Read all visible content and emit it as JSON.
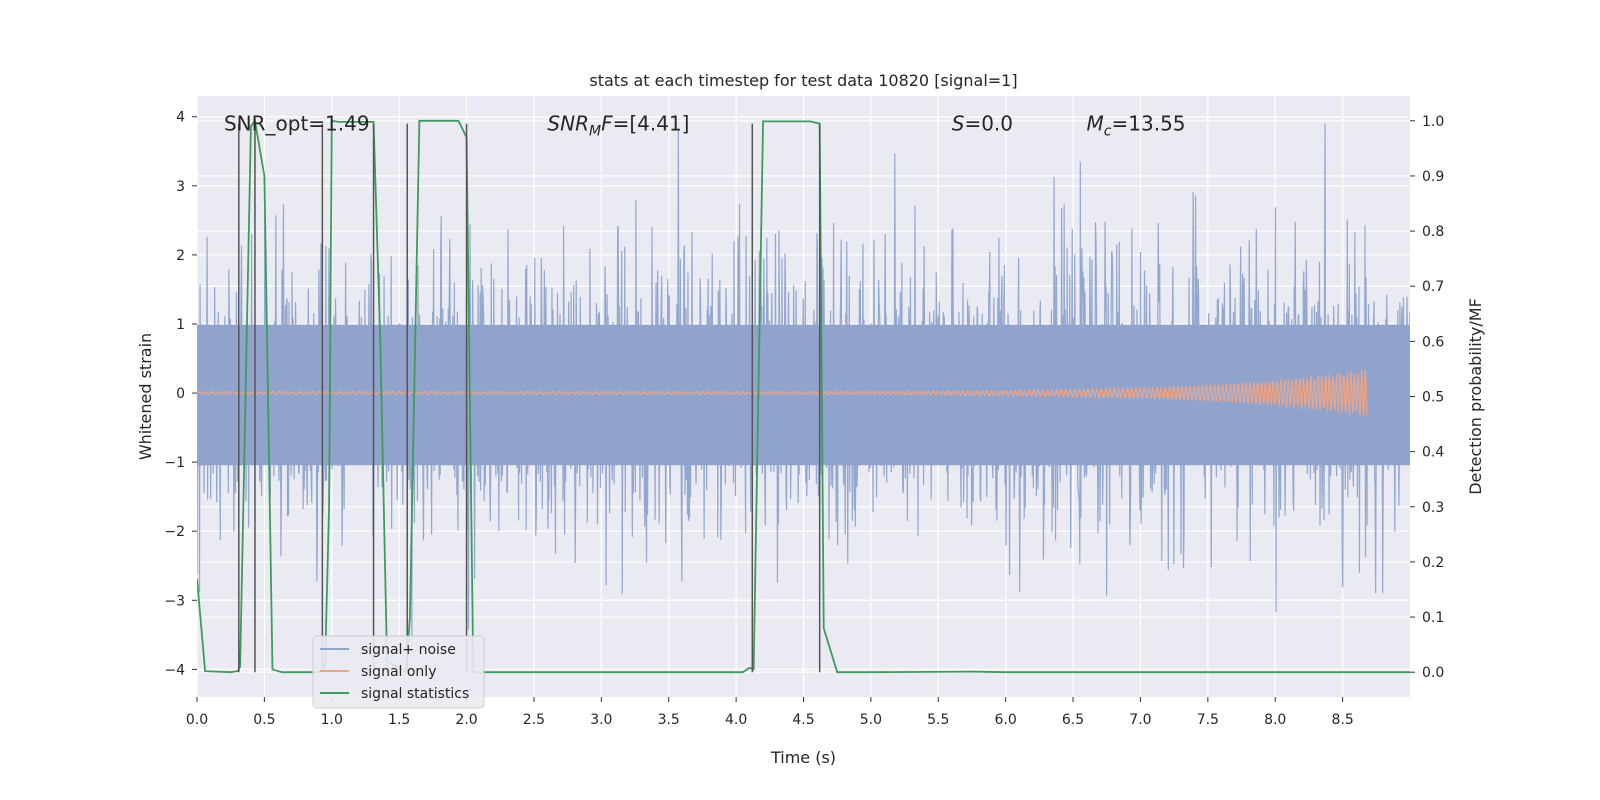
{
  "chart_data": {
    "type": "line",
    "title": "stats at each timestep for test data 10820 [signal=1]",
    "xlabel": "Time (s)",
    "ylabel_left": "Whitened strain",
    "ylabel_right": "Detection probability/MF",
    "xlim": [
      0,
      9.0
    ],
    "ylim_left": [
      -4.4,
      4.3
    ],
    "ylim_right": [
      -0.045,
      1.045
    ],
    "x_ticks": [
      0.0,
      0.5,
      1.0,
      1.5,
      2.0,
      2.5,
      3.0,
      3.5,
      4.0,
      4.5,
      5.0,
      5.5,
      6.0,
      6.5,
      7.0,
      7.5,
      8.0,
      8.5
    ],
    "x_tick_labels": [
      "0.0",
      "0.5",
      "1.0",
      "1.5",
      "2.0",
      "2.5",
      "3.0",
      "3.5",
      "4.0",
      "4.5",
      "5.0",
      "5.5",
      "6.0",
      "6.5",
      "7.0",
      "7.5",
      "8.0",
      "8.5"
    ],
    "y_left_ticks": [
      4,
      3,
      2,
      1,
      0,
      -1,
      -2,
      -3,
      -4
    ],
    "y_left_tick_labels": [
      "4",
      "3",
      "2",
      "1",
      "0",
      "−1",
      "−2",
      "−3",
      "−4"
    ],
    "y_right_ticks": [
      1.0,
      0.9,
      0.8,
      0.7,
      0.6,
      0.5,
      0.4,
      0.3,
      0.2,
      0.1,
      0.0
    ],
    "y_right_tick_labels": [
      "1.0",
      "0.9",
      "0.8",
      "0.7",
      "0.6",
      "0.5",
      "0.4",
      "0.3",
      "0.2",
      "0.1",
      "0.0"
    ],
    "grid": true,
    "annotations": [
      {
        "text_html": "SNR_opt=1.49",
        "x": 0.2,
        "y": 3.9
      },
      {
        "text_html": "<tspan font-style='italic'>SNR</tspan><tspan font-style='italic' font-size='14' dy='5'>M</tspan><tspan font-style='italic' dy='-5'>F</tspan><tspan>=[4.41]</tspan>",
        "x": 2.6,
        "y": 3.9
      },
      {
        "text_html": "<tspan font-style='italic'>S</tspan><tspan>=0.0</tspan>",
        "x": 5.6,
        "y": 3.9
      },
      {
        "text_html": "<tspan font-style='italic'>M</tspan><tspan font-style='italic' font-size='14' dy='5'>c</tspan><tspan dy='-5'>=13.55</tspan>",
        "x": 6.6,
        "y": 3.9
      }
    ],
    "legend": {
      "position": "lower-left",
      "entries": [
        {
          "label": "signal+ noise",
          "color": "#8fa3cc"
        },
        {
          "label": "signal only",
          "color": "#e8a58c"
        },
        {
          "label": "signal statistics",
          "color": "#3f9b5c"
        }
      ]
    },
    "series": [
      {
        "name": "signal+ noise",
        "axis": "left",
        "color": "#8fa3cc",
        "style": "dense-noise",
        "sample_rate_hz": 2048,
        "x_range": [
          0,
          9.0
        ],
        "envelope_upper_typical": 1.8,
        "envelope_lower_typical": -1.9,
        "peak_max": 3.9,
        "peak_min": -4.0
      },
      {
        "name": "signal only",
        "axis": "left",
        "color": "#e8a58c",
        "style": "chirp",
        "x_start": 0.0,
        "x_end": 8.68,
        "amplitude_start": 0.02,
        "amplitude_end": 0.35
      },
      {
        "name": "signal statistics",
        "axis": "right",
        "color": "#3f9b5c",
        "x": [
          0.0,
          0.06,
          0.25,
          0.3,
          0.32,
          0.4,
          0.43,
          0.5,
          0.56,
          0.63,
          0.9,
          0.95,
          0.98,
          1.0,
          1.05,
          1.2,
          1.31,
          1.36,
          1.41,
          1.55,
          1.58,
          1.65,
          1.94,
          2.0,
          2.05,
          2.1,
          3.0,
          4.05,
          4.1,
          4.13,
          4.2,
          4.55,
          4.62,
          4.65,
          4.75,
          5.0,
          5.75,
          6.0,
          7.0,
          8.0,
          9.0
        ],
        "y": [
          0.17,
          0.002,
          0.0,
          0.002,
          0.01,
          0.99,
          1.0,
          0.9,
          0.005,
          0.0,
          0.0,
          0.01,
          0.3,
          1.0,
          0.998,
          0.998,
          0.998,
          0.6,
          0.02,
          0.0,
          0.1,
          1.0,
          1.0,
          0.97,
          0.0,
          0.0,
          0.0,
          0.0,
          0.008,
          0.005,
          0.999,
          0.999,
          0.995,
          0.08,
          0.0,
          0.0,
          0.001,
          0.0,
          0.0,
          0.0,
          0.0
        ]
      },
      {
        "name": "",
        "axis": "right",
        "color": "#555555",
        "style": "vlines",
        "x": [
          0.31,
          0.43,
          0.93,
          1.31,
          1.56,
          2.0,
          4.12,
          4.62
        ],
        "y_from": 0.0,
        "y_to": 0.995
      }
    ]
  }
}
